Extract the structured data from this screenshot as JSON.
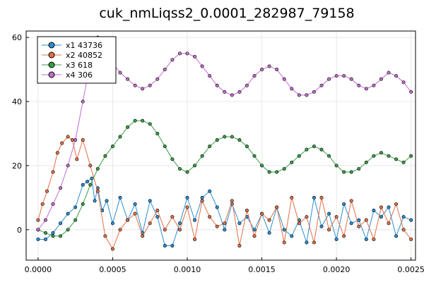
{
  "chart_data": {
    "type": "line",
    "title": "cuk_nmLiqss2_0.0001_282987_79158",
    "xlabel": "",
    "ylabel": "",
    "xlim": [
      -8e-05,
      0.00253
    ],
    "ylim": [
      -9.5,
      62
    ],
    "x_ticks": [
      0.0,
      0.0005,
      0.001,
      0.0015,
      0.002,
      0.0025
    ],
    "x_tick_labels": [
      "0.0000",
      "0.0005",
      "0.0010",
      "0.0015",
      "0.0020",
      "0.0025"
    ],
    "y_ticks": [
      0,
      20,
      40,
      60
    ],
    "y_tick_labels": [
      "0",
      "20",
      "40",
      "60"
    ],
    "grid": true,
    "legend_position": "top-left",
    "series": [
      {
        "name": "x1 43736",
        "color": "#2a8dd2",
        "x": [
          0.0,
          5e-05,
          0.0001,
          0.00015,
          0.0002,
          0.00025,
          0.0003,
          0.00033,
          0.00036,
          0.00038,
          0.0004,
          0.00043,
          0.00046,
          0.0005,
          0.00055,
          0.0006,
          0.00065,
          0.0007,
          0.00075,
          0.0008,
          0.00085,
          0.0009,
          0.00095,
          0.001,
          0.00105,
          0.0011,
          0.00115,
          0.0012,
          0.00125,
          0.0013,
          0.00135,
          0.0014,
          0.00145,
          0.0015,
          0.00155,
          0.0016,
          0.00165,
          0.0017,
          0.00175,
          0.0018,
          0.00185,
          0.0019,
          0.00195,
          0.002,
          0.00205,
          0.0021,
          0.00215,
          0.0022,
          0.00225,
          0.0023,
          0.00235,
          0.0024,
          0.00245,
          0.0025
        ],
        "values": [
          -3,
          -3,
          -1,
          2,
          5,
          7,
          14,
          15,
          16,
          9,
          13,
          6,
          9,
          2,
          10,
          3,
          8,
          -1,
          9,
          4,
          -5,
          -5,
          2,
          10,
          3,
          10,
          12,
          7,
          0,
          8,
          2,
          4,
          0,
          5,
          -1,
          7,
          0,
          -2,
          3,
          -4,
          10,
          1,
          5,
          -3,
          8,
          2,
          3,
          -3,
          6,
          4,
          7,
          -2,
          4,
          3
        ]
      },
      {
        "name": "x2 40852",
        "color": "#e26f46",
        "x": [
          0.0,
          3e-05,
          6e-05,
          0.0001,
          0.00013,
          0.00016,
          0.0002,
          0.00023,
          0.00026,
          0.0003,
          0.00035,
          0.0004,
          0.00045,
          0.0005,
          0.00055,
          0.0006,
          0.00065,
          0.0007,
          0.00075,
          0.0008,
          0.00085,
          0.0009,
          0.00095,
          0.001,
          0.00105,
          0.0011,
          0.00115,
          0.0012,
          0.00125,
          0.0013,
          0.00135,
          0.0014,
          0.00145,
          0.0015,
          0.00155,
          0.0016,
          0.00165,
          0.0017,
          0.00175,
          0.0018,
          0.00185,
          0.0019,
          0.00195,
          0.002,
          0.00205,
          0.0021,
          0.00215,
          0.0022,
          0.00225,
          0.0023,
          0.00235,
          0.0024,
          0.00245,
          0.0025
        ],
        "values": [
          3,
          8,
          12,
          18,
          24,
          27,
          29,
          28,
          22,
          28,
          20,
          12,
          -2,
          -6,
          0,
          3,
          5,
          -2,
          2,
          6,
          0,
          4,
          0,
          7,
          -3,
          9,
          4,
          1,
          2,
          9,
          -5,
          6,
          -2,
          5,
          3,
          7,
          -4,
          10,
          2,
          4,
          -4,
          10,
          0,
          4,
          -2,
          9,
          1,
          3,
          -3,
          7,
          2,
          8,
          0,
          -3
        ]
      },
      {
        "name": "x3 618",
        "color": "#3a9d48",
        "x": [
          0.0,
          5e-05,
          0.0001,
          0.00015,
          0.0002,
          0.00025,
          0.0003,
          0.00035,
          0.0004,
          0.00045,
          0.0005,
          0.00055,
          0.0006,
          0.00065,
          0.0007,
          0.00075,
          0.0008,
          0.00085,
          0.0009,
          0.00095,
          0.001,
          0.00105,
          0.0011,
          0.00115,
          0.0012,
          0.00125,
          0.0013,
          0.00135,
          0.0014,
          0.00145,
          0.0015,
          0.00155,
          0.0016,
          0.00165,
          0.0017,
          0.00175,
          0.0018,
          0.00185,
          0.0019,
          0.00195,
          0.002,
          0.00205,
          0.0021,
          0.00215,
          0.0022,
          0.00225,
          0.0023,
          0.00235,
          0.0024,
          0.00245,
          0.0025
        ],
        "values": [
          0,
          -1,
          -2,
          -2,
          0,
          3,
          8,
          14,
          19,
          23,
          26,
          29,
          32,
          34,
          34,
          33,
          30,
          26,
          22,
          19,
          18,
          20,
          23,
          26,
          28,
          29,
          29,
          28,
          26,
          23,
          20,
          18,
          18,
          19,
          21,
          23,
          25,
          26,
          25,
          23,
          20,
          18,
          18,
          19,
          21,
          23,
          24,
          23,
          22,
          21,
          23
        ]
      },
      {
        "name": "x4 306",
        "color": "#c06ec9",
        "x": [
          0.0,
          5e-05,
          0.0001,
          0.00015,
          0.0002,
          0.00025,
          0.0003,
          0.00035,
          0.0004,
          0.00045,
          0.0005,
          0.00055,
          0.0006,
          0.00065,
          0.0007,
          0.00075,
          0.0008,
          0.00085,
          0.0009,
          0.00095,
          0.001,
          0.00105,
          0.0011,
          0.00115,
          0.0012,
          0.00125,
          0.0013,
          0.00135,
          0.0014,
          0.00145,
          0.0015,
          0.00155,
          0.0016,
          0.00165,
          0.0017,
          0.00175,
          0.0018,
          0.00185,
          0.0019,
          0.00195,
          0.002,
          0.00205,
          0.0021,
          0.00215,
          0.0022,
          0.00225,
          0.0023,
          0.00235,
          0.0024,
          0.00245,
          0.0025
        ],
        "values": [
          0,
          3,
          8,
          13,
          20,
          28,
          40,
          52,
          60,
          57,
          52,
          49,
          47,
          45,
          44,
          45,
          47,
          50,
          53,
          55,
          55,
          54,
          51,
          48,
          45,
          43,
          42,
          43,
          45,
          48,
          50,
          51,
          50,
          47,
          44,
          42,
          42,
          43,
          45,
          47,
          48,
          48,
          47,
          45,
          44,
          45,
          47,
          49,
          48,
          46,
          43
        ]
      }
    ]
  }
}
